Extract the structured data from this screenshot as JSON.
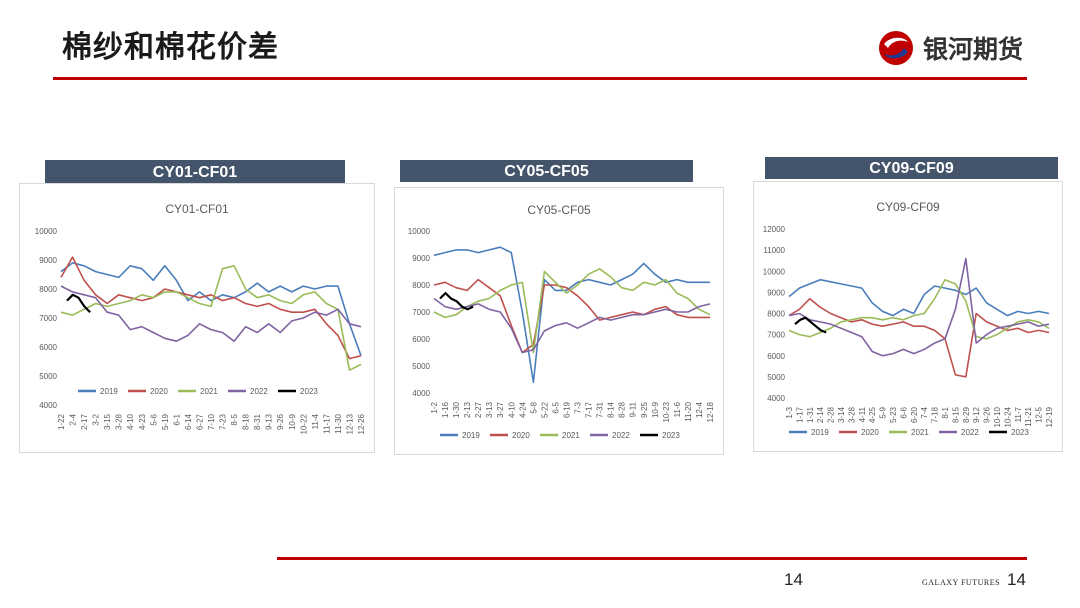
{
  "page": {
    "title": "棉纱和棉花价差",
    "logo_text": "银河期货",
    "page_number": "14",
    "page_number_right": "14",
    "brand": "GALAXY FUTURES",
    "accent": "#c00000",
    "header_bg": "#44546a"
  },
  "chart_data": [
    {
      "type": "line",
      "header": "CY01-CF01",
      "title": "CY01-CF01",
      "ylim": [
        4000,
        10000
      ],
      "yticks": [
        4000,
        5000,
        6000,
        7000,
        8000,
        9000,
        10000
      ],
      "xticks": [
        "1-22",
        "2-4",
        "2-17",
        "3-2",
        "3-15",
        "3-28",
        "4-10",
        "4-23",
        "5-6",
        "5-19",
        "6-1",
        "6-14",
        "6-27",
        "7-10",
        "7-23",
        "8-5",
        "8-18",
        "8-31",
        "9-13",
        "9-26",
        "10-9",
        "10-22",
        "11-4",
        "11-17",
        "11-30",
        "12-13",
        "12-26"
      ],
      "legend": "bottom",
      "series": [
        {
          "name": "2019",
          "color": "#4a7ebb",
          "values": [
            8600,
            8900,
            8800,
            8600,
            8500,
            8400,
            8800,
            8700,
            8300,
            8800,
            8300,
            7600,
            7900,
            7600,
            7800,
            7700,
            7900,
            8200,
            7900,
            8100,
            7900,
            8100,
            8000,
            8100,
            8100,
            6800,
            5700
          ]
        },
        {
          "name": "2020",
          "color": "#c0504d",
          "values": [
            8400,
            9100,
            8300,
            7800,
            7500,
            7800,
            7700,
            7600,
            7700,
            8000,
            7900,
            7800,
            7700,
            7800,
            7600,
            7700,
            7500,
            7400,
            7500,
            7300,
            7200,
            7200,
            7300,
            6800,
            6400,
            5600,
            5700
          ]
        },
        {
          "name": "2021",
          "color": "#9bbb59",
          "values": [
            7200,
            7100,
            7300,
            7500,
            7400,
            7500,
            7600,
            7800,
            7700,
            7900,
            7900,
            7700,
            7500,
            7400,
            8700,
            8800,
            8000,
            7700,
            7800,
            7600,
            7500,
            7800,
            7900,
            7500,
            7300,
            5200,
            5400
          ]
        },
        {
          "name": "2022",
          "color": "#8064a2",
          "values": [
            8100,
            7900,
            7800,
            7700,
            7200,
            7100,
            6600,
            6700,
            6500,
            6300,
            6200,
            6400,
            6800,
            6600,
            6500,
            6200,
            6700,
            6500,
            6800,
            6500,
            6900,
            7000,
            7200,
            7100,
            7300,
            6800,
            6700
          ]
        },
        {
          "name": "2023",
          "color": "#000000",
          "values": [
            7600,
            7800,
            7700,
            7400,
            7200
          ]
        }
      ]
    },
    {
      "type": "line",
      "header": "CY05-CF05",
      "title": "CY05-CF05",
      "ylim": [
        4000,
        10000
      ],
      "yticks": [
        4000,
        5000,
        6000,
        7000,
        8000,
        9000,
        10000
      ],
      "xticks": [
        "1-2",
        "1-16",
        "1-30",
        "2-13",
        "2-27",
        "3-13",
        "3-27",
        "4-10",
        "4-24",
        "5-8",
        "5-22",
        "6-5",
        "6-19",
        "7-3",
        "7-17",
        "7-31",
        "8-14",
        "8-28",
        "9-11",
        "9-25",
        "10-9",
        "10-23",
        "11-6",
        "11-20",
        "12-4",
        "12-18"
      ],
      "legend": "bottom",
      "series": [
        {
          "name": "2019",
          "color": "#4a7ebb",
          "values": [
            9100,
            9200,
            9300,
            9300,
            9200,
            9300,
            9400,
            9200,
            7000,
            4400,
            8200,
            7800,
            7800,
            8100,
            8200,
            8100,
            8000,
            8200,
            8400,
            8800,
            8400,
            8100,
            8200,
            8100,
            8100,
            8100
          ]
        },
        {
          "name": "2020",
          "color": "#c0504d",
          "values": [
            8000,
            8100,
            7900,
            7800,
            8200,
            7900,
            7600,
            6500,
            5500,
            5800,
            8000,
            8000,
            7900,
            7600,
            7200,
            6700,
            6800,
            6900,
            7000,
            6900,
            7100,
            7200,
            6900,
            6800,
            6800,
            6800
          ]
        },
        {
          "name": "2021",
          "color": "#9bbb59",
          "values": [
            7000,
            6800,
            6900,
            7200,
            7400,
            7500,
            7800,
            8000,
            8100,
            5500,
            8500,
            8100,
            7700,
            8000,
            8400,
            8600,
            8300,
            7900,
            7800,
            8100,
            8000,
            8200,
            7700,
            7500,
            7100,
            6900
          ]
        },
        {
          "name": "2022",
          "color": "#8064a2",
          "values": [
            7500,
            7200,
            7100,
            7200,
            7300,
            7100,
            7000,
            6400,
            5500,
            5600,
            6300,
            6500,
            6600,
            6400,
            6600,
            6800,
            6700,
            6800,
            6900,
            6900,
            7000,
            7100,
            7000,
            7000,
            7200,
            7300
          ]
        },
        {
          "name": "2023",
          "color": "#000000",
          "values": [
            7500,
            7700,
            7500,
            7400,
            7200,
            7100,
            7200
          ]
        }
      ]
    },
    {
      "type": "line",
      "header": "CY09-CF09",
      "title": "CY09-CF09",
      "ylim": [
        4000,
        12000
      ],
      "yticks": [
        4000,
        5000,
        6000,
        7000,
        8000,
        9000,
        10000,
        11000,
        12000
      ],
      "xticks": [
        "1-3",
        "1-17",
        "1-31",
        "2-14",
        "2-28",
        "3-14",
        "3-28",
        "4-11",
        "4-25",
        "5-9",
        "5-23",
        "6-6",
        "6-20",
        "7-4",
        "7-18",
        "8-1",
        "8-15",
        "8-29",
        "9-12",
        "9-26",
        "10-10",
        "10-24",
        "11-7",
        "11-21",
        "12-5",
        "12-19"
      ],
      "legend": "bottom",
      "series": [
        {
          "name": "2019",
          "color": "#4a7ebb",
          "values": [
            8800,
            9200,
            9400,
            9600,
            9500,
            9400,
            9300,
            9200,
            8500,
            8100,
            7900,
            8200,
            8000,
            8900,
            9300,
            9200,
            9100,
            8900,
            9200,
            8500,
            8200,
            7900,
            8100,
            8000,
            8100,
            8000
          ]
        },
        {
          "name": "2020",
          "color": "#c0504d",
          "values": [
            7900,
            8200,
            8700,
            8300,
            8000,
            7800,
            7600,
            7700,
            7500,
            7400,
            7500,
            7600,
            7400,
            7400,
            7200,
            6800,
            5100,
            5000,
            8000,
            7600,
            7400,
            7200,
            7300,
            7100,
            7200,
            7100
          ]
        },
        {
          "name": "2021",
          "color": "#9bbb59",
          "values": [
            7200,
            7000,
            6900,
            7100,
            7300,
            7600,
            7700,
            7800,
            7800,
            7700,
            7800,
            7700,
            7900,
            8000,
            8700,
            9600,
            9400,
            8600,
            6900,
            6800,
            7000,
            7300,
            7600,
            7700,
            7600,
            7300
          ]
        },
        {
          "name": "2022",
          "color": "#8064a2",
          "values": [
            7900,
            8000,
            7700,
            7600,
            7500,
            7300,
            7100,
            6900,
            6200,
            6000,
            6100,
            6300,
            6100,
            6300,
            6600,
            6800,
            8200,
            10600,
            6600,
            7000,
            7300,
            7400,
            7500,
            7600,
            7400,
            7500
          ]
        },
        {
          "name": "2023",
          "color": "#000000",
          "values": [
            7500,
            7700,
            7800,
            7600,
            7400,
            7200,
            7100
          ]
        }
      ]
    }
  ]
}
